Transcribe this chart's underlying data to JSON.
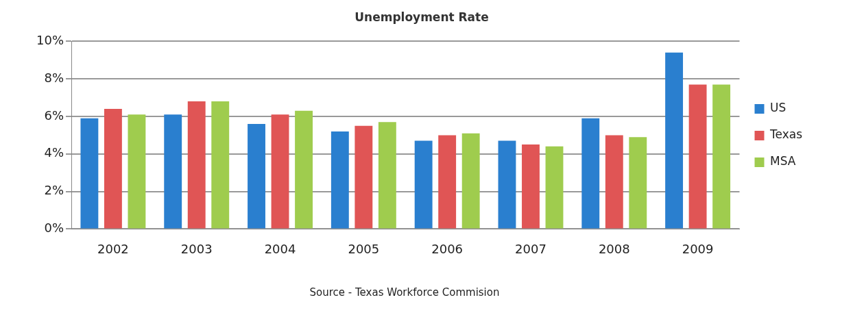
{
  "chart_data": {
    "type": "bar",
    "title": "Unemployment Rate",
    "categories": [
      "2002",
      "2003",
      "2004",
      "2005",
      "2006",
      "2007",
      "2008",
      "2009"
    ],
    "series": [
      {
        "name": "US",
        "color": "#2a7fcf",
        "values": [
          5.9,
          6.1,
          5.6,
          5.2,
          4.7,
          4.7,
          5.9,
          9.4
        ]
      },
      {
        "name": "Texas",
        "color": "#e05555",
        "values": [
          6.4,
          6.8,
          6.1,
          5.5,
          5.0,
          4.5,
          5.0,
          7.7
        ]
      },
      {
        "name": "MSA",
        "color": "#9fcc4e",
        "values": [
          6.1,
          6.8,
          6.3,
          5.7,
          5.1,
          4.4,
          4.9,
          7.7
        ]
      }
    ],
    "ylim": [
      0,
      10
    ],
    "yticks": [
      {
        "value": 0,
        "label": "0%"
      },
      {
        "value": 2,
        "label": "2%"
      },
      {
        "value": 4,
        "label": "4%"
      },
      {
        "value": 6,
        "label": "6%"
      },
      {
        "value": 8,
        "label": "8%"
      },
      {
        "value": 10,
        "label": "10%"
      }
    ],
    "grid": "y",
    "legend": "right",
    "annotations": [
      "Source - Texas Workforce Commision"
    ]
  }
}
